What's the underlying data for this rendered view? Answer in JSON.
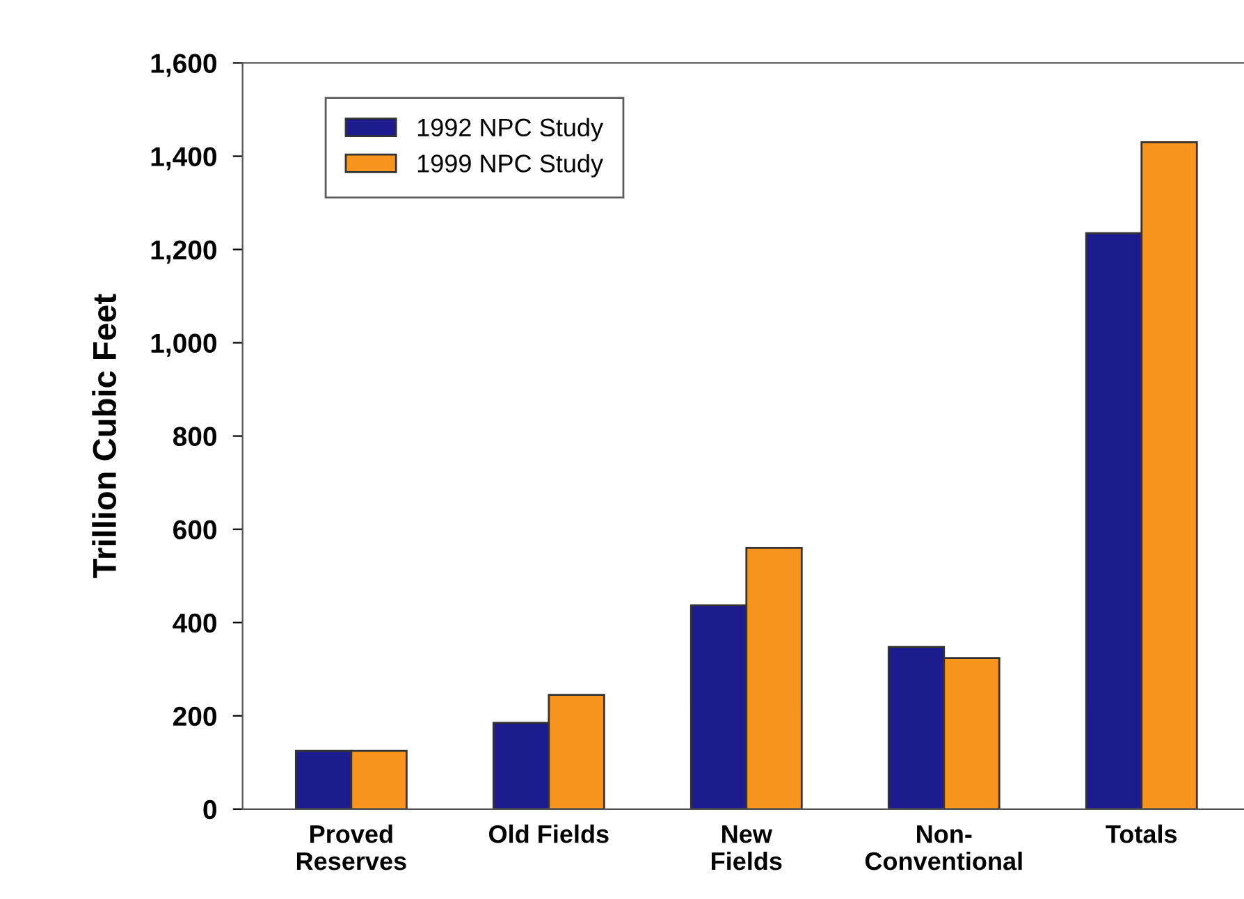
{
  "chart_data": {
    "type": "bar",
    "ylabel": "Trillion Cubic Feet",
    "categories": [
      "Proved\nReserves",
      "Old Fields",
      "New\nFields",
      "Non-\nConventional",
      "Totals"
    ],
    "series": [
      {
        "name": "1992 NPC Study",
        "color": "#1c1c8f",
        "values": [
          125,
          185,
          437,
          348,
          1235
        ]
      },
      {
        "name": "1999 NPC Study",
        "color": "#f7941d",
        "values": [
          125,
          245,
          560,
          324,
          1430
        ]
      }
    ],
    "ylim": [
      0,
      1600
    ],
    "yticks": [
      0,
      200,
      400,
      600,
      800,
      {
        "value": 1000,
        "label": "1,000"
      },
      {
        "value": 1200,
        "label": "1,200"
      },
      {
        "value": 1400,
        "label": "1,400"
      },
      {
        "value": 1600,
        "label": "1,600"
      }
    ],
    "grid": false,
    "legend": "top left"
  }
}
